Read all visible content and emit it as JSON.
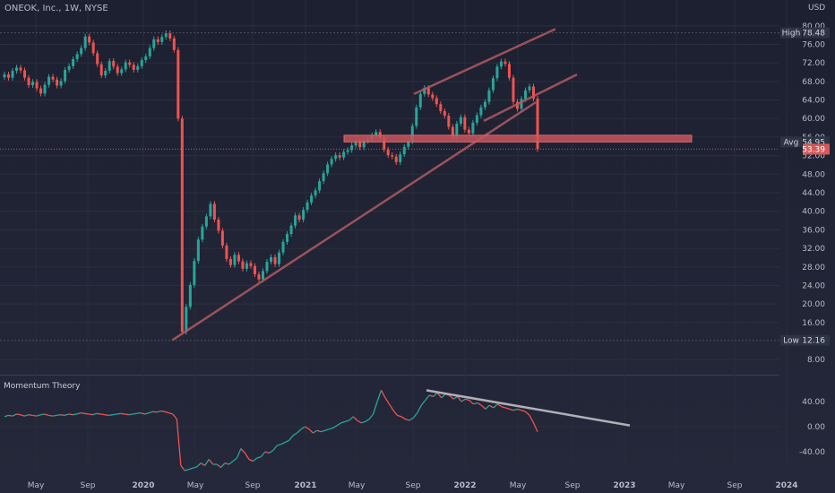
{
  "header": {
    "symbol": "ONEOK, Inc., 1W, NYSE",
    "currency": "USD"
  },
  "indicator": {
    "title": "Momentum Theory",
    "ticks": [
      "40.00",
      "0.00",
      "-40.00"
    ]
  },
  "colors": {
    "up": "#26a69a",
    "down": "#ef5350",
    "trend": "#b25a62",
    "zone": "#c9545c",
    "indicator_trend": "#b0b0b6"
  },
  "chart_data": {
    "type": "candlestick",
    "title": "ONEOK, Inc., 1W, NYSE",
    "yaxis": {
      "ticks": [
        80,
        76,
        72,
        68,
        64,
        60,
        56,
        52,
        48,
        44,
        40,
        36,
        32,
        28,
        24,
        20,
        16,
        8
      ],
      "range": [
        6.3,
        81.7
      ]
    },
    "xaxis": {
      "ticks": [
        "May",
        "Sep",
        "2020",
        "May",
        "Sep",
        "2021",
        "May",
        "Sep",
        "2022",
        "May",
        "Sep",
        "2023",
        "May",
        "Sep",
        "2024"
      ]
    },
    "price_labels": [
      {
        "label": "High",
        "value": 78.48
      },
      {
        "label": "Avg",
        "value": 54.95
      },
      {
        "label": "",
        "value": 53.39
      },
      {
        "label": "Low",
        "value": 12.16
      }
    ],
    "closes": [
      69.5,
      68.8,
      70.3,
      71,
      70.4,
      68.8,
      67.2,
      67.9,
      66.5,
      65.4,
      67.3,
      69,
      68.4,
      67.1,
      68.1,
      70.5,
      71.3,
      72.8,
      73.9,
      75.2,
      77.7,
      76.4,
      74.1,
      71.7,
      69.3,
      70.3,
      72.4,
      71.2,
      69.8,
      70.6,
      72.1,
      71.6,
      70.5,
      71.3,
      72.6,
      73.4,
      75.2,
      77.1,
      76.5,
      77.6,
      78.4,
      77.3,
      74.8,
      60,
      14,
      19.4,
      24.1,
      29.3,
      33.9,
      36.7,
      38.9,
      41.6,
      38.2,
      35.8,
      32.6,
      29.7,
      28.4,
      30.6,
      29.2,
      27.6,
      28.8,
      28.2,
      26.4,
      25.3,
      27.1,
      29.1,
      30.1,
      28.6,
      31.1,
      33.4,
      35.1,
      36.9,
      39.1,
      38.2,
      40.3,
      41.9,
      43.4,
      44.5,
      46.5,
      48.2,
      50.1,
      51.3,
      52.1,
      51.6,
      52.8,
      53.2,
      54.2,
      55.1,
      53.8,
      55.2,
      55.6,
      56.4,
      57.1,
      55.8,
      53.3,
      52.1,
      51.8,
      50.6,
      52.3,
      53.9,
      55.1,
      58.4,
      62.4,
      65.3,
      66.6,
      65.2,
      64.4,
      63.1,
      61.6,
      60.6,
      58.2,
      56.1,
      58.9,
      60.3,
      57.6,
      56.8,
      59.1,
      60.7,
      62.4,
      63.6,
      66.1,
      68.7,
      71.2,
      72.3,
      71.8,
      68.8,
      63.6,
      62.1,
      64.2,
      66.1,
      66.9,
      64.3,
      53.4
    ],
    "indicator_values": [
      16,
      18,
      17,
      20,
      19,
      17,
      19,
      18,
      17,
      19,
      20,
      18,
      17,
      18,
      19,
      18,
      20,
      19,
      20,
      22,
      21,
      20,
      19,
      21,
      20,
      19,
      18,
      19,
      20,
      21,
      20,
      19,
      20,
      21,
      22,
      20,
      22,
      24,
      23,
      25,
      24,
      22,
      20,
      12,
      -62,
      -70,
      -68,
      -66,
      -64,
      -58,
      -62,
      -52,
      -60,
      -60,
      -65,
      -58,
      -60,
      -55,
      -50,
      -35,
      -42,
      -52,
      -55,
      -50,
      -48,
      -40,
      -42,
      -38,
      -30,
      -28,
      -25,
      -22,
      -14,
      -10,
      -4,
      0,
      -4,
      -10,
      -6,
      -8,
      -6,
      -4,
      -2,
      2,
      6,
      8,
      10,
      16,
      10,
      6,
      8,
      12,
      20,
      40,
      58,
      46,
      36,
      26,
      18,
      16,
      12,
      10,
      14,
      22,
      34,
      42,
      50,
      48,
      54,
      46,
      52,
      50,
      44,
      48,
      40,
      44,
      42,
      36,
      38,
      34,
      28,
      34,
      30,
      36,
      32,
      30,
      28,
      26,
      28,
      26,
      24,
      18,
      6,
      -8
    ],
    "trendlines": [
      {
        "from": [
          "2020",
          12.16
        ],
        "to": [
          "2022",
          70.0
        ]
      },
      {
        "from": [
          "2021",
          65.3
        ],
        "to": [
          "2022",
          79.3
        ]
      }
    ],
    "zone": {
      "low": 54.95,
      "high": 56.4
    }
  }
}
